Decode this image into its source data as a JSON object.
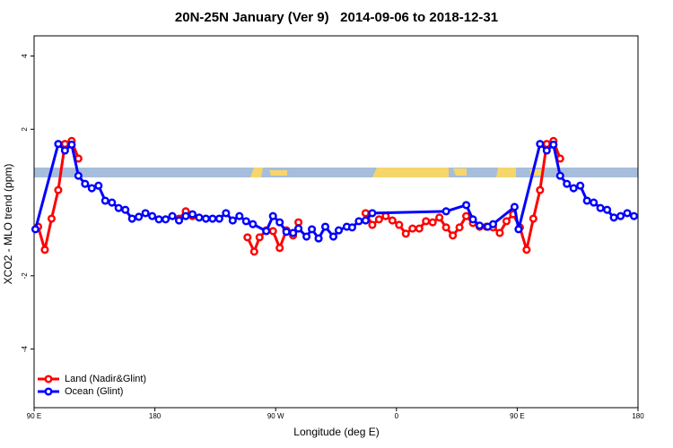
{
  "chart_data": {
    "type": "line",
    "title": "20N-25N January (Ver 9)   2014-09-06 to 2018-12-31",
    "x_label": "Longitude (deg E)",
    "y_label": "XCO2 - MLO trend (ppm)",
    "xlim": [
      90,
      540
    ],
    "ylim": [
      -5.6,
      4.55
    ],
    "xticks": [
      {
        "value": 90,
        "label": "90 E"
      },
      180,
      {
        "value": 270,
        "label": "90 W"
      },
      {
        "value": 360,
        "label": "0"
      },
      {
        "value": 450,
        "label": "90 E"
      },
      {
        "value": 540,
        "label": "180"
      }
    ],
    "yticks": [
      -4,
      -2,
      2,
      4
    ],
    "legend": "bottom-left",
    "series": [
      {
        "name": "Land (Nadir&Glint)",
        "color": "#ff0000",
        "x": [
          93,
          98,
          103,
          108,
          113,
          118,
          123,
          128,
          198,
          203,
          208,
          213,
          249,
          254,
          258,
          263,
          268,
          273,
          278,
          283,
          287,
          292,
          337,
          342,
          347,
          352,
          357,
          362,
          367,
          372,
          377,
          382,
          387,
          392,
          397,
          402,
          407,
          412,
          417,
          422,
          427,
          432,
          437,
          442,
          447,
          452,
          457,
          462,
          467,
          472,
          477,
          482
        ],
        "values": [
          -0.66,
          -1.29,
          -0.44,
          0.34,
          1.6,
          1.68,
          1.2,
          null,
          -0.44,
          -0.24,
          -0.37,
          null,
          -0.95,
          -1.34,
          -0.95,
          -0.76,
          -0.78,
          -1.24,
          -0.76,
          -0.9,
          -0.54,
          null,
          -0.29,
          -0.61,
          -0.46,
          -0.37,
          -0.49,
          -0.61,
          -0.85,
          -0.71,
          -0.71,
          -0.51,
          -0.54,
          -0.41,
          -0.68,
          -0.9,
          -0.68,
          -0.37,
          -0.56,
          -0.66,
          -0.66,
          -0.68,
          -0.83,
          -0.51,
          -0.32,
          -0.68,
          -1.29,
          -0.44,
          0.34,
          1.6,
          1.68,
          1.2
        ]
      },
      {
        "name": "Ocean (Glint)",
        "color": "#0000ff",
        "x": [
          91,
          108,
          113,
          118,
          123,
          128,
          133,
          138,
          143,
          148,
          153,
          158,
          163,
          168,
          173,
          178,
          183,
          188,
          193,
          198,
          203,
          208,
          213,
          218,
          223,
          228,
          233,
          238,
          243,
          248,
          253,
          263,
          268,
          273,
          278,
          283,
          287,
          293,
          297,
          302,
          307,
          313,
          317,
          323,
          327,
          332,
          337,
          342,
          397,
          412,
          417,
          422,
          428,
          432,
          448,
          451,
          467,
          472,
          477,
          482,
          487,
          492,
          497,
          502,
          507,
          512,
          517,
          522,
          527,
          532,
          537
        ],
        "values": [
          -0.73,
          1.6,
          1.42,
          1.58,
          0.73,
          0.51,
          0.39,
          0.46,
          0.05,
          0,
          -0.15,
          -0.2,
          -0.44,
          -0.39,
          -0.29,
          -0.37,
          -0.46,
          -0.46,
          -0.37,
          -0.49,
          -0.37,
          -0.32,
          -0.41,
          -0.44,
          -0.44,
          -0.44,
          -0.29,
          -0.49,
          -0.37,
          -0.51,
          -0.59,
          -0.78,
          -0.37,
          -0.54,
          -0.8,
          -0.83,
          -0.71,
          -0.93,
          -0.73,
          -0.98,
          -0.66,
          -0.93,
          -0.76,
          -0.66,
          -0.68,
          -0.51,
          -0.49,
          -0.29,
          -0.24,
          -0.07,
          -0.46,
          -0.63,
          -0.66,
          -0.59,
          -0.12,
          -0.73,
          1.6,
          1.42,
          1.58,
          0.73,
          0.51,
          0.39,
          0.46,
          0.05,
          0,
          -0.15,
          -0.2,
          -0.41,
          -0.37,
          -0.29,
          -0.37
        ]
      }
    ]
  }
}
